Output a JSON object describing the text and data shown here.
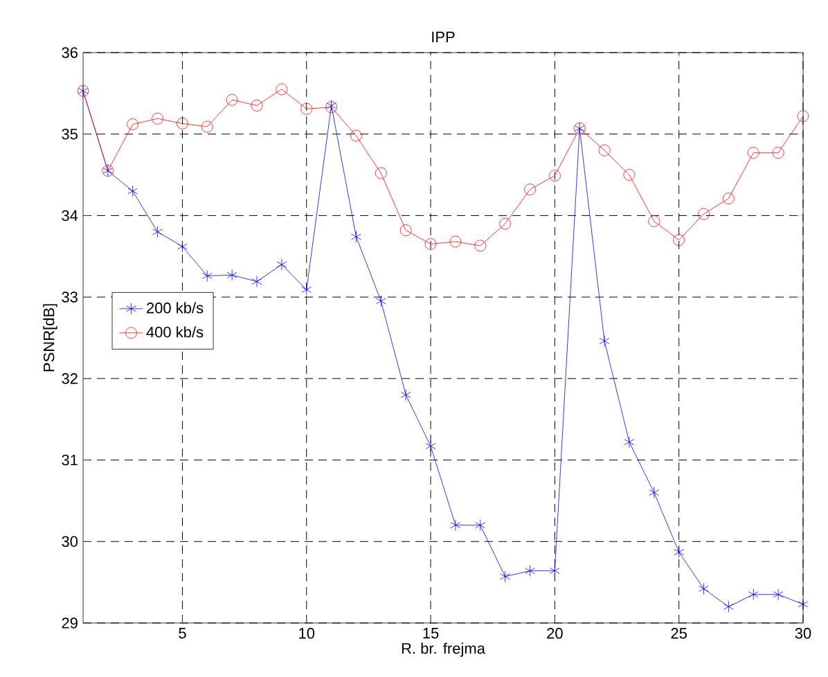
{
  "chart_data": {
    "type": "line",
    "title": "IPP",
    "xlabel": "R. br. frejma",
    "ylabel": "PSNR[dB]",
    "x": [
      1,
      2,
      3,
      4,
      5,
      6,
      7,
      8,
      9,
      10,
      11,
      12,
      13,
      14,
      15,
      16,
      17,
      18,
      19,
      20,
      21,
      22,
      23,
      24,
      25,
      26,
      27,
      28,
      29,
      30
    ],
    "xlim": [
      1,
      30
    ],
    "xticks": [
      5,
      10,
      15,
      20,
      25,
      30
    ],
    "ylim": [
      29,
      36
    ],
    "yticks": [
      29,
      30,
      31,
      32,
      33,
      34,
      35,
      36
    ],
    "grid": true,
    "legend": "left",
    "line_style": "solid",
    "series": [
      {
        "name": "200 kb/s",
        "color": "#0000ff",
        "marker": "cross",
        "values": [
          35.53,
          34.55,
          34.3,
          33.8,
          33.62,
          33.26,
          33.27,
          33.19,
          33.4,
          33.09,
          35.35,
          33.74,
          32.95,
          31.8,
          31.17,
          30.2,
          30.2,
          29.57,
          29.64,
          29.64,
          35.07,
          32.46,
          31.22,
          30.6,
          29.87,
          29.42,
          29.2,
          29.35,
          29.35,
          29.23
        ]
      },
      {
        "name": "400 kb/s",
        "color": "#ff0000",
        "marker": "circle",
        "values": [
          35.53,
          34.55,
          35.12,
          35.19,
          35.13,
          35.09,
          35.42,
          35.35,
          35.55,
          35.31,
          35.33,
          34.98,
          34.52,
          33.82,
          33.65,
          33.68,
          33.63,
          33.9,
          34.32,
          34.49,
          35.07,
          34.8,
          34.5,
          33.93,
          33.7,
          34.02,
          34.21,
          34.77,
          34.77,
          35.22
        ]
      }
    ]
  }
}
